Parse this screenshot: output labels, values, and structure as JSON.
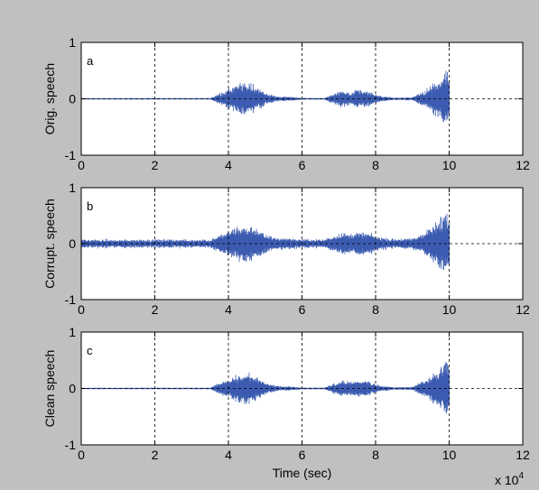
{
  "figure": {
    "background": "#c0c0c0",
    "axes_background": "#ffffff",
    "signal_color": "#3b5bb0",
    "exponent_label": "x 10",
    "exponent_power": "4"
  },
  "chart_data": [
    {
      "type": "line",
      "panel": "a",
      "ylabel": "Orig. speech",
      "xlabel": "",
      "xlim": [
        0,
        120000
      ],
      "ylim": [
        -1,
        1
      ],
      "x_ticks": [
        0,
        2,
        4,
        6,
        8,
        10,
        12
      ],
      "y_ticks": [
        -1,
        0,
        1
      ],
      "x_tick_scale": 10000,
      "grid": "dashed",
      "signal_end": 100000,
      "noise_floor": 0.003,
      "envelope": [
        [
          0,
          0.01
        ],
        [
          35000,
          0.01
        ],
        [
          38000,
          0.12
        ],
        [
          41000,
          0.22
        ],
        [
          44000,
          0.32
        ],
        [
          47000,
          0.27
        ],
        [
          50000,
          0.12
        ],
        [
          53000,
          0.05
        ],
        [
          57000,
          0.04
        ],
        [
          60000,
          0.015
        ],
        [
          66000,
          0.012
        ],
        [
          68000,
          0.08
        ],
        [
          71000,
          0.16
        ],
        [
          73000,
          0.12
        ],
        [
          75000,
          0.17
        ],
        [
          78000,
          0.15
        ],
        [
          81000,
          0.06
        ],
        [
          85000,
          0.02
        ],
        [
          90000,
          0.03
        ],
        [
          93000,
          0.15
        ],
        [
          97000,
          0.38
        ],
        [
          99000,
          0.58
        ],
        [
          100000,
          0.52
        ]
      ]
    },
    {
      "type": "line",
      "panel": "b",
      "ylabel": "Corrupt. speech",
      "xlabel": "",
      "xlim": [
        0,
        120000
      ],
      "ylim": [
        -1,
        1
      ],
      "x_ticks": [
        0,
        2,
        4,
        6,
        8,
        10,
        12
      ],
      "y_ticks": [
        -1,
        0,
        1
      ],
      "x_tick_scale": 10000,
      "grid": "dashed",
      "signal_end": 100000,
      "noise_floor": 0.08,
      "envelope": [
        [
          0,
          0.01
        ],
        [
          35000,
          0.01
        ],
        [
          38000,
          0.12
        ],
        [
          41000,
          0.22
        ],
        [
          44000,
          0.32
        ],
        [
          47000,
          0.27
        ],
        [
          50000,
          0.12
        ],
        [
          53000,
          0.05
        ],
        [
          57000,
          0.04
        ],
        [
          60000,
          0.015
        ],
        [
          66000,
          0.012
        ],
        [
          68000,
          0.08
        ],
        [
          71000,
          0.16
        ],
        [
          73000,
          0.12
        ],
        [
          75000,
          0.17
        ],
        [
          78000,
          0.15
        ],
        [
          81000,
          0.06
        ],
        [
          85000,
          0.02
        ],
        [
          90000,
          0.03
        ],
        [
          93000,
          0.15
        ],
        [
          97000,
          0.38
        ],
        [
          99000,
          0.58
        ],
        [
          100000,
          0.52
        ]
      ]
    },
    {
      "type": "line",
      "panel": "c",
      "ylabel": "Clean speech",
      "xlabel": "Time (sec)",
      "xlim": [
        0,
        120000
      ],
      "ylim": [
        -1,
        1
      ],
      "x_ticks": [
        0,
        2,
        4,
        6,
        8,
        10,
        12
      ],
      "y_ticks": [
        -1,
        0,
        1
      ],
      "x_tick_scale": 10000,
      "grid": "dashed",
      "signal_end": 100000,
      "noise_floor": 0.004,
      "envelope": [
        [
          0,
          0.01
        ],
        [
          35000,
          0.01
        ],
        [
          38000,
          0.12
        ],
        [
          41000,
          0.22
        ],
        [
          44000,
          0.32
        ],
        [
          47000,
          0.27
        ],
        [
          50000,
          0.12
        ],
        [
          53000,
          0.05
        ],
        [
          57000,
          0.04
        ],
        [
          60000,
          0.015
        ],
        [
          66000,
          0.012
        ],
        [
          68000,
          0.08
        ],
        [
          71000,
          0.16
        ],
        [
          73000,
          0.12
        ],
        [
          75000,
          0.17
        ],
        [
          78000,
          0.15
        ],
        [
          81000,
          0.06
        ],
        [
          85000,
          0.02
        ],
        [
          90000,
          0.03
        ],
        [
          93000,
          0.15
        ],
        [
          97000,
          0.38
        ],
        [
          99000,
          0.58
        ],
        [
          100000,
          0.52
        ]
      ]
    }
  ]
}
